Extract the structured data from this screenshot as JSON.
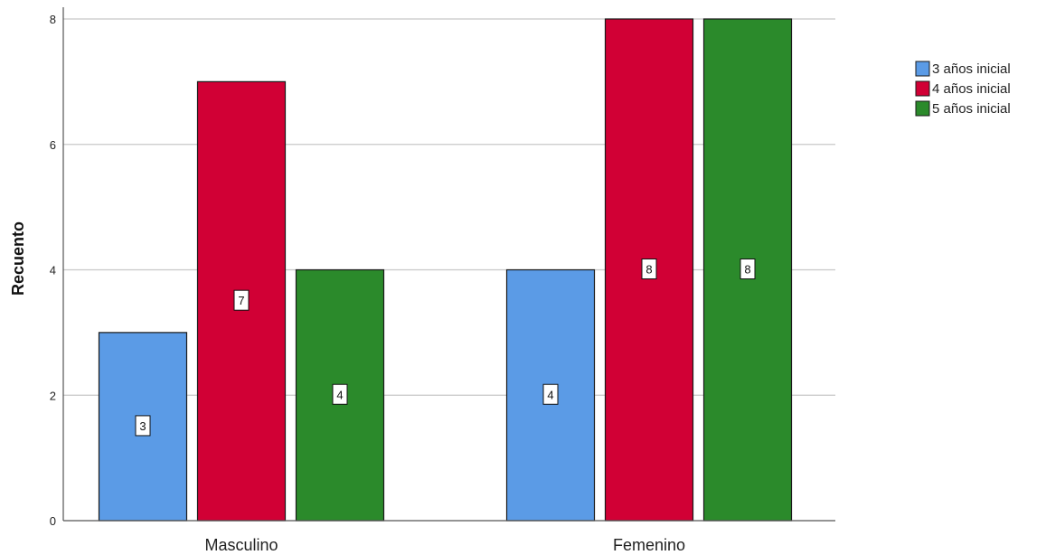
{
  "chart_data": {
    "type": "bar",
    "categories": [
      "Masculino",
      "Femenino"
    ],
    "series": [
      {
        "name": "3 años inicial",
        "values": [
          3,
          4
        ],
        "color": "#5b9be6"
      },
      {
        "name": "4 años inicial",
        "values": [
          7,
          8
        ],
        "color": "#d10035"
      },
      {
        "name": "5 años inicial",
        "values": [
          4,
          8
        ],
        "color": "#2b8a2b"
      }
    ],
    "ylabel": "Recuento",
    "xlabel": "",
    "ylim": [
      0,
      8
    ],
    "yticks": [
      0,
      2,
      4,
      6,
      8
    ],
    "grid": true,
    "legend_position": "right",
    "data_labels": true
  }
}
